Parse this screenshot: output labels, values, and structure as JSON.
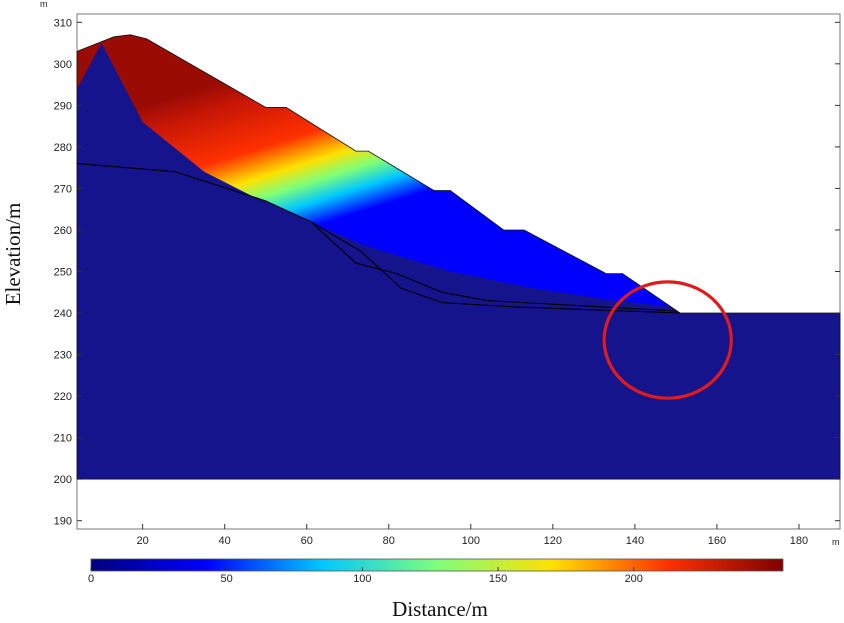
{
  "chart_data": {
    "type": "heatmap",
    "xlabel": "Distance/m",
    "ylabel": "Elevation/m",
    "x_unit": "m",
    "y_unit": "m",
    "xlim": [
      4,
      190
    ],
    "ylim": [
      188,
      312
    ],
    "x_ticks": [
      20,
      40,
      60,
      80,
      100,
      120,
      140,
      160,
      180
    ],
    "y_ticks": [
      190,
      200,
      210,
      220,
      230,
      240,
      250,
      260,
      270,
      280,
      290,
      300,
      310
    ],
    "colorbar": {
      "range": [
        0,
        255
      ],
      "ticks": [
        0,
        50,
        100,
        150,
        200
      ],
      "colormap": [
        "#00007f",
        "#0000ff",
        "#00c8ff",
        "#7dff7a",
        "#ffe100",
        "#ff3000",
        "#7f0000"
      ]
    },
    "slope_profile": [
      [
        4,
        303
      ],
      [
        13,
        306.5
      ],
      [
        17,
        307
      ],
      [
        21,
        306
      ],
      [
        50,
        289.5
      ],
      [
        55,
        289.5
      ],
      [
        72,
        279
      ],
      [
        75,
        279
      ],
      [
        91,
        269.5
      ],
      [
        95,
        269.5
      ],
      [
        108,
        260
      ],
      [
        113,
        260
      ],
      [
        133,
        249.5
      ],
      [
        137,
        249.5
      ],
      [
        151,
        240
      ],
      [
        190,
        240
      ]
    ],
    "model_bottom": 200,
    "interfaces": [
      [
        [
          4,
          276
        ],
        [
          28,
          274
        ],
        [
          50,
          267
        ],
        [
          61,
          262
        ],
        [
          73,
          255
        ],
        [
          83,
          246
        ],
        [
          93,
          242.5
        ],
        [
          110,
          241.5
        ],
        [
          151,
          240
        ]
      ],
      [
        [
          61,
          262
        ],
        [
          72,
          252
        ],
        [
          82,
          249.5
        ],
        [
          93,
          245
        ],
        [
          104,
          243
        ],
        [
          150,
          240.5
        ]
      ]
    ],
    "highlight_circle": {
      "cx": 148,
      "cy": 233.5,
      "rx": 15.5,
      "ry": 14,
      "color": "#e11b1b"
    },
    "colors": {
      "background_field": "#15148d",
      "interface_line": "#000000"
    }
  }
}
